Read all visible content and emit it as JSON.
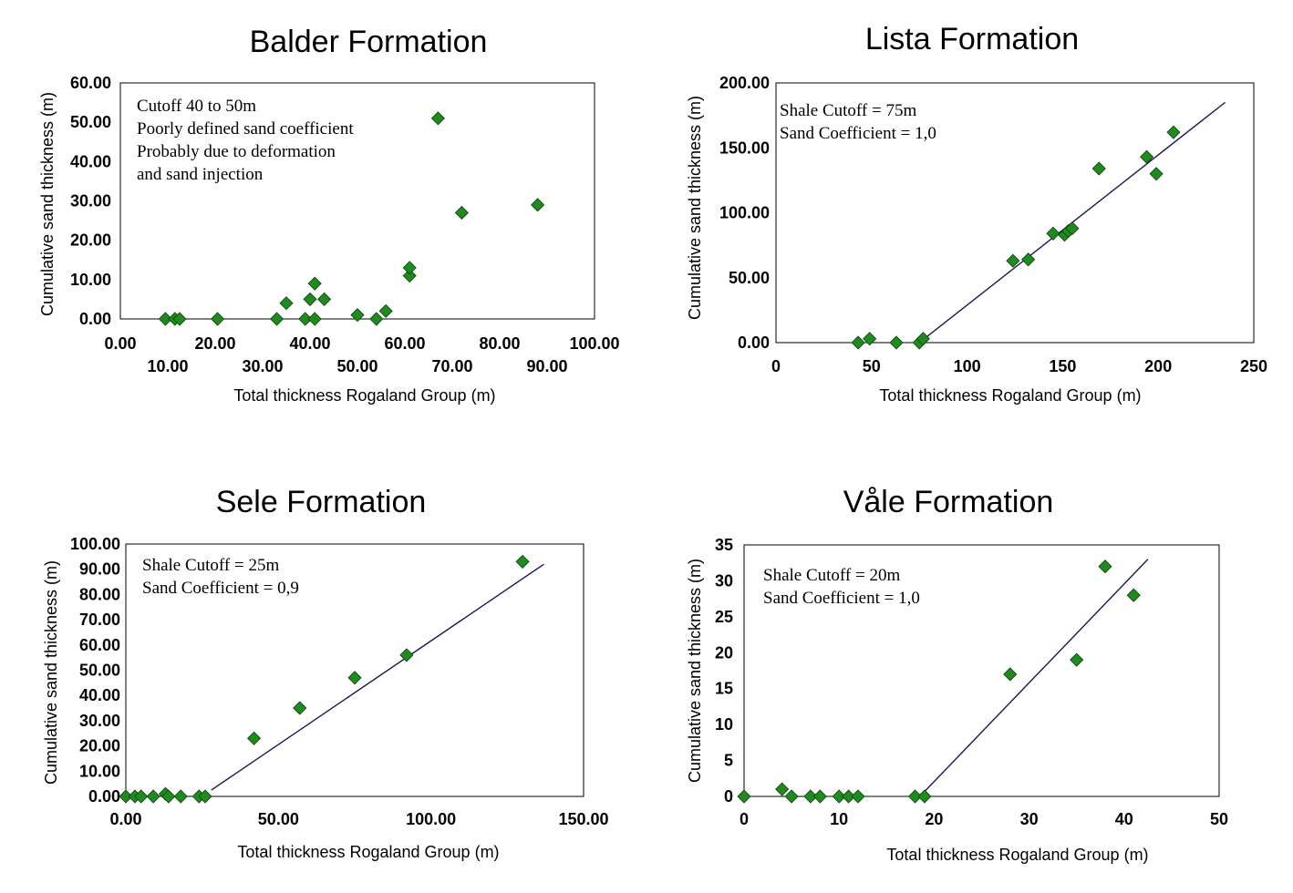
{
  "chart_data": [
    {
      "type": "scatter",
      "title": "Balder Formation",
      "xlabel": "Total thickness Rogaland Group (m)",
      "ylabel": "Cumulative sand thickness (m)",
      "xlim": [
        0,
        100
      ],
      "ylim": [
        0,
        60
      ],
      "xticks_top": [
        "0.00",
        "20.00",
        "40.00",
        "60.00",
        "80.00",
        "100.00"
      ],
      "xticks_bottom": [
        "10.00",
        "30.00",
        "50.00",
        "70.00",
        "90.00"
      ],
      "yticks": [
        "0.00",
        "10.00",
        "20.00",
        "30.00",
        "40.00",
        "50.00",
        "60.00"
      ],
      "annotation": [
        "Cutoff 40 to 50m",
        "Poorly defined sand coefficient",
        "Probably due to deformation",
        "and sand injection"
      ],
      "grid": false,
      "color": "#1f8b1f",
      "points": [
        {
          "x": 9.5,
          "y": 0
        },
        {
          "x": 11.5,
          "y": 0
        },
        {
          "x": 12.5,
          "y": 0
        },
        {
          "x": 20.5,
          "y": 0
        },
        {
          "x": 33,
          "y": 0
        },
        {
          "x": 35,
          "y": 4
        },
        {
          "x": 39,
          "y": 0
        },
        {
          "x": 40,
          "y": 5
        },
        {
          "x": 41,
          "y": 9
        },
        {
          "x": 41,
          "y": 0
        },
        {
          "x": 43,
          "y": 5
        },
        {
          "x": 50,
          "y": 1
        },
        {
          "x": 54,
          "y": 0
        },
        {
          "x": 56,
          "y": 2
        },
        {
          "x": 61,
          "y": 11
        },
        {
          "x": 61,
          "y": 13
        },
        {
          "x": 67,
          "y": 51
        },
        {
          "x": 72,
          "y": 27
        },
        {
          "x": 88,
          "y": 29
        }
      ]
    },
    {
      "type": "scatter",
      "title": "Lista Formation",
      "xlabel": "Total thickness Rogaland Group (m)",
      "ylabel": "Cumulative sand thickness (m)",
      "xlim": [
        0,
        250
      ],
      "ylim": [
        0,
        200
      ],
      "xticks": [
        "0",
        "50",
        "100",
        "150",
        "200",
        "250"
      ],
      "yticks": [
        "0.00",
        "50.00",
        "100.00",
        "150.00",
        "200.00"
      ],
      "annotation": [
        "Shale Cutoff = 75m",
        "Sand Coefficient = 1,0"
      ],
      "grid": false,
      "color": "#1f8b1f",
      "fit_line": [
        [
          75,
          0
        ],
        [
          235,
          185
        ]
      ],
      "points": [
        {
          "x": 43,
          "y": 0
        },
        {
          "x": 49,
          "y": 3
        },
        {
          "x": 63,
          "y": 0
        },
        {
          "x": 75,
          "y": 0
        },
        {
          "x": 77,
          "y": 3
        },
        {
          "x": 124,
          "y": 63
        },
        {
          "x": 132,
          "y": 64
        },
        {
          "x": 145,
          "y": 84
        },
        {
          "x": 151,
          "y": 83
        },
        {
          "x": 153,
          "y": 86
        },
        {
          "x": 155,
          "y": 88
        },
        {
          "x": 169,
          "y": 134
        },
        {
          "x": 194,
          "y": 143
        },
        {
          "x": 199,
          "y": 130
        },
        {
          "x": 208,
          "y": 162
        }
      ]
    },
    {
      "type": "scatter",
      "title": "Sele Formation",
      "xlabel": "Total thickness Rogaland Group (m)",
      "ylabel": "Cumulative sand thickness (m)",
      "xlim": [
        0,
        150
      ],
      "ylim": [
        0,
        100
      ],
      "xticks": [
        "0.00",
        "50.00",
        "100.00",
        "150.00"
      ],
      "yticks": [
        "0.00",
        "10.00",
        "20.00",
        "30.00",
        "40.00",
        "50.00",
        "60.00",
        "70.00",
        "80.00",
        "90.00",
        "100.00"
      ],
      "annotation": [
        "Shale Cutoff = 25m",
        "Sand Coefficient = 0,9"
      ],
      "grid": false,
      "color": "#1f8b1f",
      "fit_line": [
        [
          28,
          2.5
        ],
        [
          137,
          92
        ]
      ],
      "points": [
        {
          "x": 0,
          "y": 0
        },
        {
          "x": 3,
          "y": 0
        },
        {
          "x": 5,
          "y": 0
        },
        {
          "x": 9,
          "y": 0
        },
        {
          "x": 13,
          "y": 1
        },
        {
          "x": 14,
          "y": 0
        },
        {
          "x": 18,
          "y": 0
        },
        {
          "x": 24,
          "y": 0
        },
        {
          "x": 26,
          "y": 0
        },
        {
          "x": 42,
          "y": 23
        },
        {
          "x": 57,
          "y": 35
        },
        {
          "x": 75,
          "y": 47
        },
        {
          "x": 92,
          "y": 56
        },
        {
          "x": 130,
          "y": 93
        }
      ]
    },
    {
      "type": "scatter",
      "title": "Våle Formation",
      "xlabel": "Total thickness Rogaland Group (m)",
      "ylabel": "Cumulative sand thickness (m)",
      "xlim": [
        0,
        50
      ],
      "ylim": [
        0,
        35
      ],
      "xticks": [
        "0",
        "10",
        "20",
        "30",
        "40",
        "50"
      ],
      "yticks": [
        "0",
        "5",
        "10",
        "15",
        "20",
        "25",
        "30",
        "35"
      ],
      "annotation": [
        "Shale Cutoff = 20m",
        "Sand Coefficient = 1,0"
      ],
      "grid": false,
      "color": "#1f8b1f",
      "fit_line": [
        [
          18.5,
          0
        ],
        [
          42.5,
          33
        ]
      ],
      "points": [
        {
          "x": 0,
          "y": 0
        },
        {
          "x": 4,
          "y": 1
        },
        {
          "x": 5,
          "y": 0
        },
        {
          "x": 7,
          "y": 0
        },
        {
          "x": 8,
          "y": 0
        },
        {
          "x": 10,
          "y": 0
        },
        {
          "x": 11,
          "y": 0
        },
        {
          "x": 12,
          "y": 0
        },
        {
          "x": 18,
          "y": 0
        },
        {
          "x": 19,
          "y": 0
        },
        {
          "x": 28,
          "y": 17
        },
        {
          "x": 35,
          "y": 19
        },
        {
          "x": 38,
          "y": 32
        },
        {
          "x": 41,
          "y": 28
        }
      ]
    }
  ]
}
